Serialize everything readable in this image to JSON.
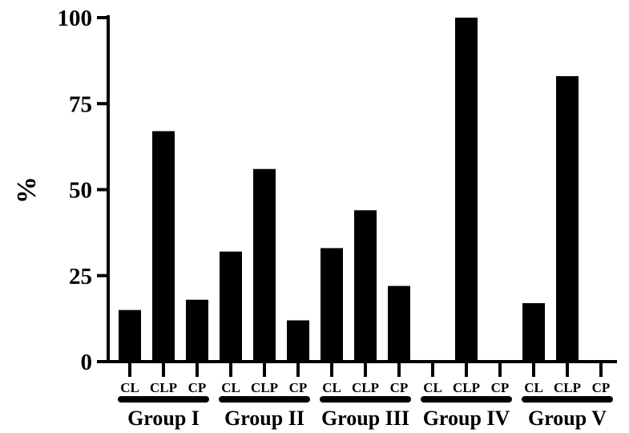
{
  "chart_data": {
    "type": "bar",
    "title": "",
    "xlabel": "",
    "ylabel": "%",
    "ylim": [
      0,
      100
    ],
    "yticks": [
      "0",
      "25",
      "50",
      "75",
      "100"
    ],
    "ytick_values": [
      0,
      25,
      50,
      75,
      100
    ],
    "grid": false,
    "bar_color": "#000000",
    "subcategories": [
      "CL",
      "CLP",
      "CP"
    ],
    "groups": [
      {
        "name": "Group I",
        "values": [
          15,
          67,
          18
        ]
      },
      {
        "name": "Group II",
        "values": [
          32,
          56,
          12
        ]
      },
      {
        "name": "Group III",
        "values": [
          33,
          44,
          22
        ]
      },
      {
        "name": "Group IV",
        "values": [
          0,
          100,
          0
        ]
      },
      {
        "name": "Group V",
        "values": [
          17,
          83,
          0
        ]
      }
    ]
  }
}
